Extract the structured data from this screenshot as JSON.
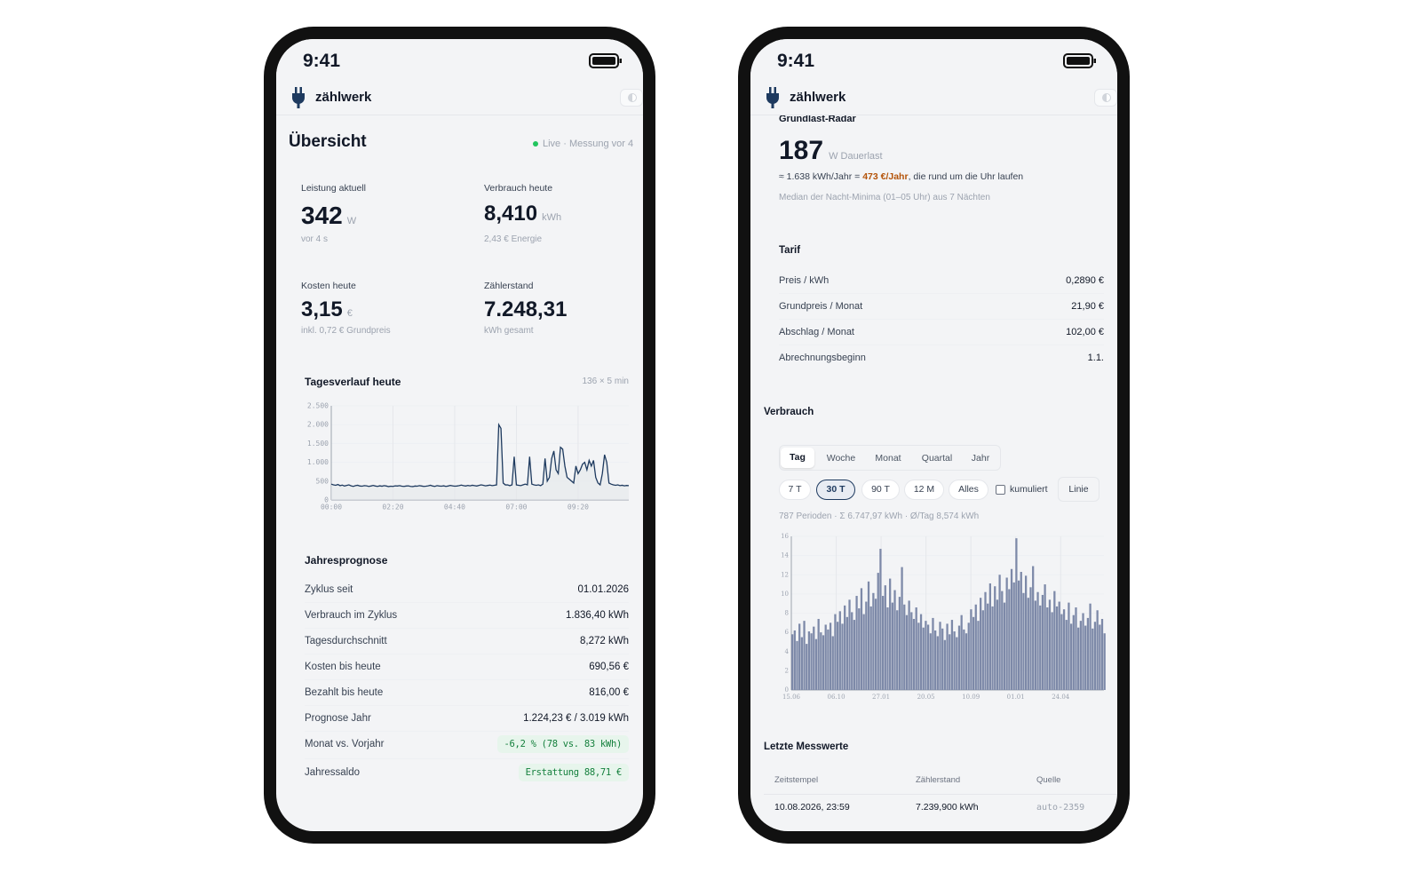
{
  "screens": [
    {
      "time": "9:41",
      "app": "zählwerk",
      "title": "Übersicht",
      "live": "Live · Messung vor 4",
      "cards": [
        {
          "label": "Leistung aktuell",
          "value": "342",
          "unit": "W",
          "sub": "vor 4 s"
        },
        {
          "label": "Verbrauch heute",
          "value": "8,410",
          "unit": "kWh",
          "sub": "2,43 € Energie"
        },
        {
          "label": "Kosten heute",
          "value": "3,15",
          "unit": "€",
          "sub": "inkl. 0,72 € Grundpreis"
        },
        {
          "label": "Zählerstand",
          "value": "7.248,31",
          "sub": "kWh gesamt"
        }
      ],
      "forecast": {
        "title": "Jahresprognose",
        "rows": [
          {
            "label": "Zyklus seit",
            "value": "01.01.2026"
          },
          {
            "label": "Verbrauch im Zyklus",
            "value": "1.836,40 kWh"
          },
          {
            "label": "Tagesdurchschnitt",
            "value": "8,272 kWh"
          },
          {
            "label": "Kosten bis heute",
            "value": "690,56 €"
          },
          {
            "label": "Bezahlt bis heute",
            "value": "816,00 €"
          },
          {
            "label": "Prognose Jahr",
            "value": "1.224,23 € / 3.019 kWh"
          },
          {
            "label": "Monat vs. Vorjahr",
            "value": "-6,2 % (78 vs. 83 kWh)",
            "badge": true
          },
          {
            "label": "Jahressaldo",
            "value": "Erstattung 88,71 €",
            "badge": true
          }
        ]
      }
    },
    {
      "time": "9:41",
      "app": "zählwerk",
      "radar": {
        "title": "Grundlast-Radar",
        "value": "187",
        "unit": "W Dauerlast",
        "line": "≈ 1.638 kWh/Jahr = ",
        "highlight": "473 €/Jahr",
        "line_end": ", die rund um die Uhr laufen",
        "note": "Median der Nacht-Minima (01–05 Uhr) aus 7 Nächten"
      },
      "tariff": {
        "title": "Tarif",
        "rows": [
          {
            "label": "Preis / kWh",
            "value": "0,2890 €"
          },
          {
            "label": "Grundpreis / Monat",
            "value": "21,90 €"
          },
          {
            "label": "Abschlag / Monat",
            "value": "102,00 €"
          },
          {
            "label": "Abrechnungsbeginn",
            "value": "1.1."
          }
        ]
      },
      "usage": {
        "heading": "Verbrauch",
        "tabs": [
          "Tag",
          "Woche",
          "Monat",
          "Quartal",
          "Jahr"
        ],
        "active_tab": 0,
        "ranges": [
          "7 T",
          "30 T",
          "90 T",
          "12 M",
          "Alles"
        ],
        "active_range": 1,
        "cumulative": "kumuliert",
        "mode": "Linie",
        "summary": "787 Perioden · Σ 6.747,97 kWh · Ø/Tag 8,574 kWh"
      },
      "latest": {
        "heading": "Letzte Messwerte",
        "columns": [
          "Zeitstempel",
          "Zählerstand",
          "Quelle"
        ],
        "rows": [
          [
            "10.08.2026, 23:59",
            "7.239,900 kWh",
            "auto-2359"
          ]
        ]
      }
    }
  ],
  "chart_data": [
    {
      "type": "line",
      "title": "Tagesverlauf heute",
      "subtitle": "136 × 5 min",
      "color": "#1e3a5f",
      "grid": true,
      "x": [
        0,
        5,
        10,
        15,
        20,
        25,
        30,
        35,
        40,
        45,
        50,
        55,
        60,
        65,
        70,
        75,
        80,
        85,
        90,
        95,
        100,
        105,
        110,
        115,
        120,
        125,
        130,
        135,
        140,
        145,
        150,
        155,
        160,
        165,
        170,
        175,
        180,
        185,
        190,
        195,
        200,
        205,
        210,
        215,
        220,
        225,
        230,
        235,
        240,
        245,
        250,
        255,
        260,
        265,
        270,
        275,
        280,
        285,
        290,
        295,
        300,
        305,
        310,
        315,
        320,
        325,
        330,
        335,
        340,
        345,
        350,
        355,
        360,
        365,
        370,
        375,
        380,
        385,
        390,
        395,
        400,
        405,
        410,
        415,
        420,
        425,
        430,
        435,
        440,
        445,
        450,
        455,
        460,
        465,
        470,
        475,
        480,
        485,
        490,
        495,
        500,
        505,
        510,
        515,
        520,
        525,
        530,
        535,
        540,
        545,
        550,
        555,
        560,
        565,
        570,
        575,
        580,
        585,
        590,
        595,
        600,
        605,
        610,
        615,
        620,
        625,
        630,
        635,
        640,
        645,
        650,
        655,
        660,
        665,
        670,
        675
      ],
      "values": [
        420,
        400,
        390,
        410,
        380,
        395,
        370,
        385,
        400,
        375,
        360,
        380,
        390,
        370,
        365,
        380,
        375,
        360,
        370,
        385,
        370,
        360,
        375,
        365,
        380,
        370,
        355,
        365,
        360,
        375,
        370,
        380,
        365,
        360,
        370,
        375,
        360,
        355,
        370,
        365,
        380,
        370,
        360,
        365,
        375,
        390,
        370,
        360,
        380,
        370,
        365,
        375,
        360,
        370,
        385,
        375,
        365,
        370,
        380,
        395,
        380,
        370,
        385,
        375,
        390,
        380,
        370,
        385,
        400,
        390,
        375,
        385,
        395,
        380,
        390,
        400,
        2000,
        1900,
        450,
        400,
        400,
        380,
        400,
        1150,
        400,
        390,
        380,
        400,
        420,
        400,
        1150,
        420,
        400,
        390,
        400,
        380,
        420,
        1100,
        500,
        600,
        1100,
        1300,
        800,
        700,
        1400,
        1350,
        900,
        600,
        550,
        500,
        450,
        900,
        700,
        800,
        950,
        1000,
        800,
        1050,
        900,
        1050,
        600,
        450,
        400,
        700,
        1200,
        1000,
        450,
        420,
        400,
        390,
        400,
        380,
        390,
        375,
        385,
        380
      ],
      "xlim": [
        0,
        675
      ],
      "xticks": [
        {
          "value": 0,
          "label": "00:00"
        },
        {
          "value": 140,
          "label": "02:20"
        },
        {
          "value": 280,
          "label": "04:40"
        },
        {
          "value": 420,
          "label": "07:00"
        },
        {
          "value": 560,
          "label": "09:20"
        }
      ],
      "ylim": [
        0,
        2500
      ],
      "yticks": [
        0,
        500,
        {
          "value": 1000,
          "label": "1.000"
        },
        {
          "value": 1500,
          "label": "1.500"
        },
        {
          "value": 2000,
          "label": "2.000"
        },
        {
          "value": 2500,
          "label": "2.500"
        }
      ]
    },
    {
      "type": "bar",
      "color": "#7d89a8",
      "grid": true,
      "x": [
        0,
        6,
        12,
        18,
        24,
        30,
        36,
        42,
        48,
        54,
        60,
        66,
        72,
        78,
        84,
        90,
        96,
        102,
        108,
        114,
        120,
        126,
        132,
        138,
        144,
        150,
        156,
        162,
        168,
        174,
        180,
        186,
        192,
        198,
        204,
        210,
        216,
        222,
        228,
        234,
        240,
        246,
        252,
        258,
        264,
        270,
        276,
        282,
        288,
        294,
        300,
        306,
        312,
        318,
        324,
        330,
        336,
        342,
        348,
        354,
        360,
        366,
        372,
        378,
        384,
        390,
        396,
        402,
        408,
        414,
        420,
        426,
        432,
        438,
        444,
        450,
        456,
        462,
        468,
        474,
        480,
        486,
        492,
        498,
        504,
        510,
        516,
        522,
        528,
        534,
        540,
        546,
        552,
        558,
        564,
        570,
        576,
        582,
        588,
        594,
        600,
        606,
        612,
        618,
        624,
        630,
        636,
        642,
        648,
        654,
        660,
        666,
        672,
        678,
        684,
        690,
        696,
        702,
        708,
        714,
        720,
        726,
        732,
        738,
        744,
        750,
        756,
        762,
        768,
        774,
        780,
        786
      ],
      "values": [
        5.8,
        6.2,
        5.1,
        6.9,
        5.5,
        7.2,
        4.8,
        6.1,
        5.9,
        6.6,
        5.3,
        7.4,
        6.0,
        5.7,
        6.8,
        6.3,
        7.0,
        5.6,
        7.9,
        7.1,
        8.2,
        6.9,
        8.8,
        7.6,
        9.4,
        8.1,
        7.3,
        9.8,
        8.5,
        10.6,
        7.9,
        9.2,
        11.3,
        8.7,
        10.1,
        9.5,
        12.2,
        14.7,
        9.8,
        10.9,
        8.6,
        11.6,
        9.1,
        10.4,
        8.3,
        9.7,
        12.8,
        8.9,
        7.8,
        9.3,
        8.1,
        7.4,
        8.6,
        7.0,
        7.9,
        6.5,
        7.2,
        6.8,
        5.9,
        7.5,
        6.2,
        5.6,
        7.1,
        6.4,
        5.2,
        6.9,
        5.8,
        7.3,
        6.1,
        5.5,
        6.7,
        7.8,
        6.3,
        5.9,
        7.0,
        8.4,
        7.6,
        8.9,
        7.2,
        9.6,
        8.3,
        10.2,
        9.0,
        11.1,
        8.7,
        10.8,
        9.4,
        12.0,
        10.3,
        9.1,
        11.7,
        10.5,
        12.6,
        11.2,
        15.8,
        11.4,
        12.3,
        10.1,
        11.9,
        9.6,
        10.7,
        12.9,
        9.3,
        10.2,
        8.8,
        9.9,
        11.0,
        8.6,
        9.4,
        8.1,
        10.3,
        8.7,
        9.2,
        7.9,
        8.4,
        7.3,
        9.1,
        6.9,
        7.8,
        8.6,
        6.5,
        7.2,
        8.0,
        6.7,
        7.5,
        9.0,
        6.4,
        7.1,
        8.3,
        6.8,
        7.4,
        5.9
      ],
      "xlim": [
        0,
        787
      ],
      "xticks": [
        {
          "value": 0,
          "label": "15.06"
        },
        {
          "value": 113,
          "label": "06.10"
        },
        {
          "value": 226,
          "label": "27.01"
        },
        {
          "value": 339,
          "label": "20.05"
        },
        {
          "value": 452,
          "label": "10.09"
        },
        {
          "value": 565,
          "label": "01.01"
        },
        {
          "value": 678,
          "label": "24.04"
        }
      ],
      "ylim": [
        0,
        16
      ],
      "yticks": [
        0,
        2,
        4,
        6,
        8,
        10,
        12,
        14,
        16
      ]
    }
  ]
}
